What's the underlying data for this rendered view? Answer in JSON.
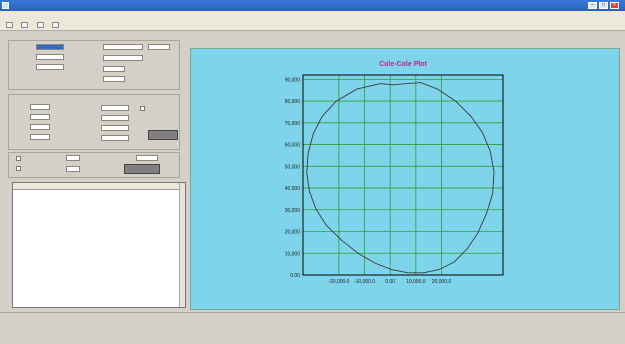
{
  "window": {
    "title": ""
  },
  "menu": [],
  "left": {
    "row1_label": "",
    "row1_value": "",
    "row2_label": "",
    "row2_value": "",
    "row3_label": "",
    "row3_value": "",
    "right_label1": "",
    "right_label2": "",
    "group2_title": "",
    "f1": "",
    "f2": "",
    "f3": "",
    "f4": "",
    "f5": "",
    "f6": "",
    "f7": "",
    "f8": "",
    "button_label": "",
    "chk1": "",
    "chk2": "",
    "chk3": "",
    "run_label": ""
  },
  "table": {
    "headers": [],
    "rows": []
  },
  "tabs": [],
  "chart_data": {
    "type": "line",
    "title": "Cole-Cole Plot",
    "xlabel": "",
    "ylabel": "",
    "xlim": [
      -34000,
      44000
    ],
    "ylim": [
      0,
      92000
    ],
    "xticks": [
      -20000,
      -10000,
      0,
      10000,
      20000
    ],
    "xtick_labels": [
      "-20,000.0",
      "-10,000.0",
      "0.00",
      "10,000.0",
      "20,000.0"
    ],
    "yticks": [
      0,
      10000,
      20000,
      30000,
      40000,
      50000,
      60000,
      70000,
      80000,
      90000
    ],
    "ytick_labels": [
      "0.00",
      "10,000",
      "20,000",
      "30,000",
      "40,000",
      "50,000",
      "60,000",
      "70,000",
      "80,000",
      "90,000"
    ],
    "grid": true,
    "x": [
      -4000,
      -13000,
      -21000,
      -26500,
      -30000,
      -32000,
      -32500,
      -31500,
      -29000,
      -25000,
      -19000,
      -12500,
      -6000,
      500,
      7000,
      13000,
      19000,
      25000,
      30000,
      34000,
      37500,
      40000,
      40500,
      39000,
      36000,
      31500,
      25500,
      18500,
      12000,
      6000,
      1000,
      -3500,
      -4000
    ],
    "y": [
      88000,
      85500,
      80000,
      73000,
      65000,
      56000,
      47000,
      38500,
      30500,
      23000,
      16000,
      10000,
      5500,
      2500,
      1000,
      1000,
      2500,
      6000,
      12000,
      19000,
      28000,
      37500,
      47500,
      57000,
      65500,
      73000,
      80000,
      85500,
      88500,
      88000,
      87500,
      88000,
      88000
    ],
    "series_color": "#3a3a3a",
    "plot_bg": "#7ed4eb",
    "grid_color": "#2fa12f",
    "title_color": "#c0268a"
  },
  "buttons": []
}
